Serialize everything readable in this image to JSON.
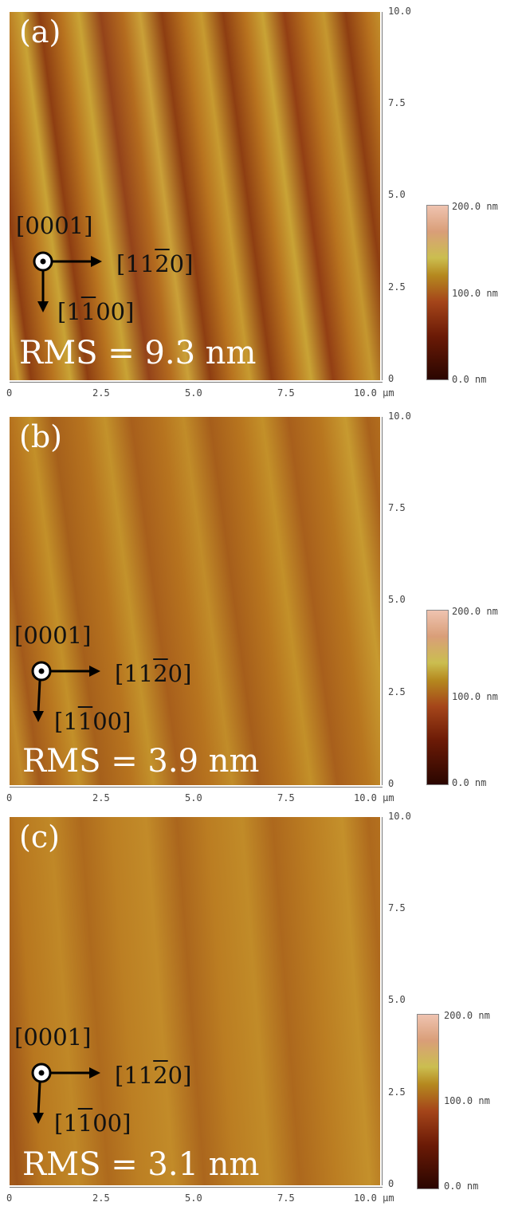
{
  "panels": [
    {
      "label": "(a)",
      "rms": "RMS = 9.3 nm",
      "stripe_contrast": 0.9
    },
    {
      "label": "(b)",
      "rms": "RMS = 3.9 nm",
      "stripe_contrast": 0.45
    },
    {
      "label": "(c)",
      "rms": "RMS = 3.1 nm",
      "stripe_contrast": 0.3
    }
  ],
  "directions": {
    "out_of_plane": "[0001]",
    "x_pre": "[11",
    "x_bar": "2",
    "x_post": "0]",
    "y_pre": "[1",
    "y_bar": "1",
    "y_post": "00]"
  },
  "x_axis_ticks": [
    "0",
    "2.5",
    "5.0",
    "7.5",
    "10.0 μm"
  ],
  "y_axis_ticks": [
    "10.0",
    "7.5",
    "5.0",
    "2.5",
    "0"
  ],
  "colorbar": {
    "max": "200.0 nm",
    "mid": "100.0 nm",
    "min": "0.0 nm"
  },
  "colors": {
    "surface_base": "#b8731f",
    "stripe_dark": "#8e3e12",
    "stripe_light": "#c9a335"
  }
}
